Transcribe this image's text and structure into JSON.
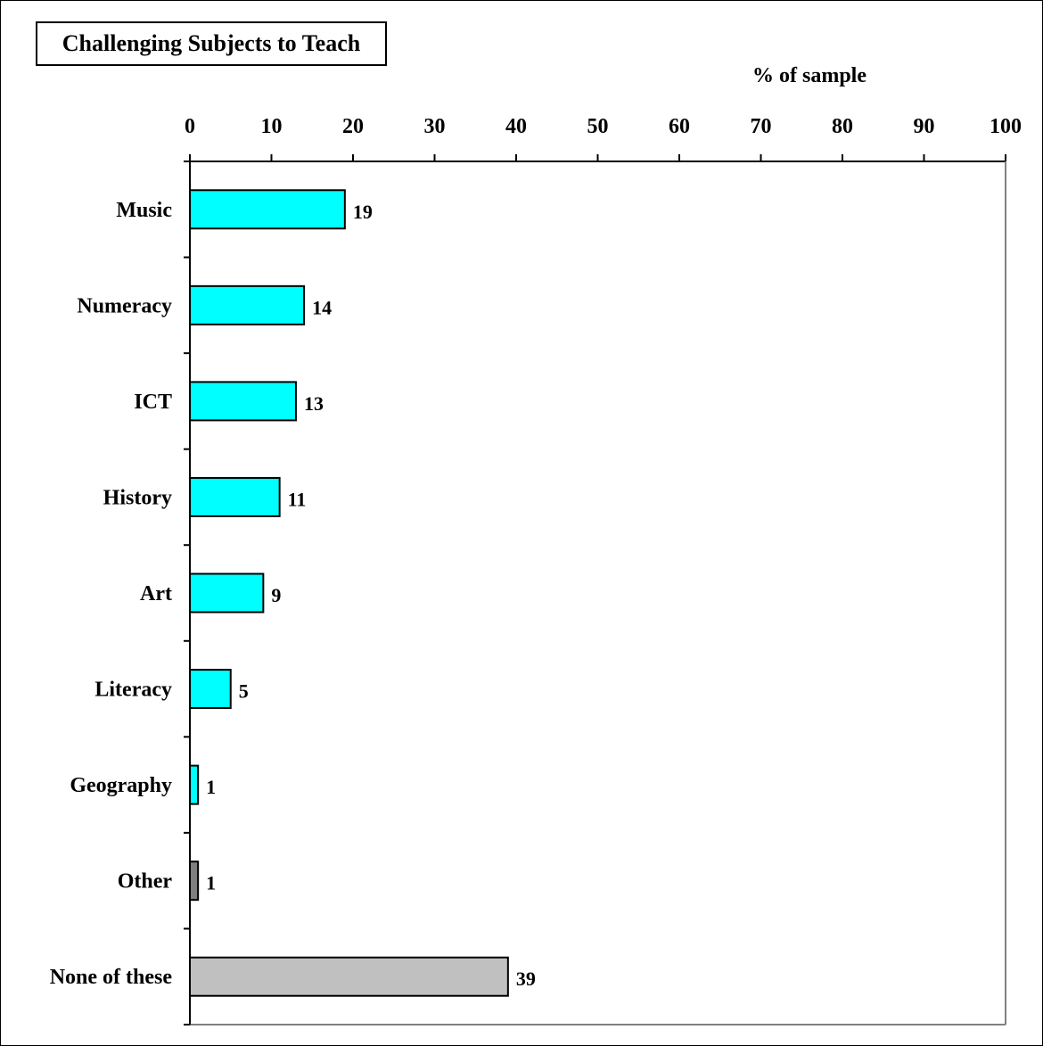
{
  "chart_data": {
    "type": "bar",
    "orientation": "horizontal",
    "title": "Challenging Subjects to Teach",
    "xlabel": "% of sample",
    "ylabel": "",
    "xlim": [
      0,
      100
    ],
    "x_ticks": [
      "0",
      "10",
      "20",
      "30",
      "40",
      "50",
      "60",
      "70",
      "80",
      "90",
      "100"
    ],
    "categories": [
      "Music",
      "Numeracy",
      "ICT",
      "History",
      "Art",
      "Literacy",
      "Geography",
      "Other",
      "None of these"
    ],
    "values": [
      19,
      14,
      13,
      11,
      9,
      5,
      1,
      1,
      39
    ],
    "bar_colors": [
      "#00ffff",
      "#00ffff",
      "#00ffff",
      "#00ffff",
      "#00ffff",
      "#00ffff",
      "#00ffff",
      "#808080",
      "#c0c0c0"
    ],
    "data_labels": [
      "19",
      "14",
      "13",
      "11",
      "9",
      "5",
      "1",
      "1",
      "39"
    ],
    "grid": false,
    "legend": "none"
  }
}
